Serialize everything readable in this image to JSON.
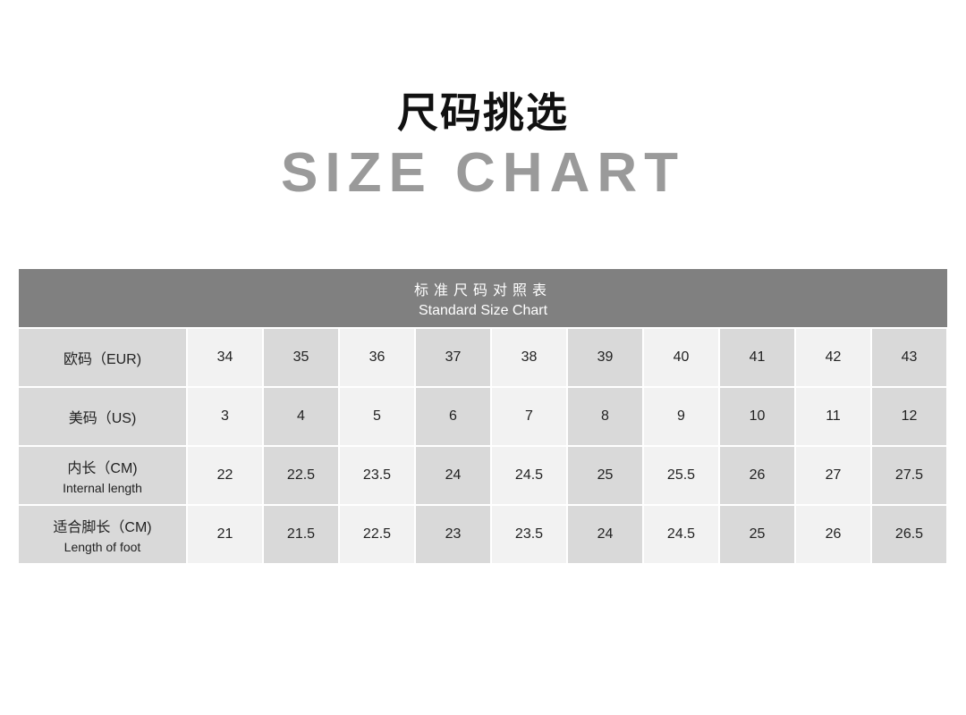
{
  "title_cn": "尺码挑选",
  "title_en": "SIZE CHART",
  "table": {
    "header_cn": "标准尺码对照表",
    "header_en": "Standard Size Chart",
    "rows": [
      {
        "label": "欧码（EUR)",
        "sublabel": "",
        "values": [
          "34",
          "35",
          "36",
          "37",
          "38",
          "39",
          "40",
          "41",
          "42",
          "43"
        ]
      },
      {
        "label": "美码（US)",
        "sublabel": "",
        "values": [
          "3",
          "4",
          "5",
          "6",
          "7",
          "8",
          "9",
          "10",
          "11",
          "12"
        ]
      },
      {
        "label": "内长（CM)",
        "sublabel": "Internal length",
        "values": [
          "22",
          "22.5",
          "23.5",
          "24",
          "24.5",
          "25",
          "25.5",
          "26",
          "27",
          "27.5"
        ]
      },
      {
        "label": "适合脚长（CM)",
        "sublabel": "Length of foot",
        "values": [
          "21",
          "21.5",
          "22.5",
          "23",
          "23.5",
          "24",
          "24.5",
          "25",
          "26",
          "26.5"
        ]
      }
    ]
  },
  "colors": {
    "header_bg": "#808080",
    "cell_light": "#f2f2f2",
    "cell_dark": "#d9d9d9",
    "title_en": "#9a9a9a"
  }
}
